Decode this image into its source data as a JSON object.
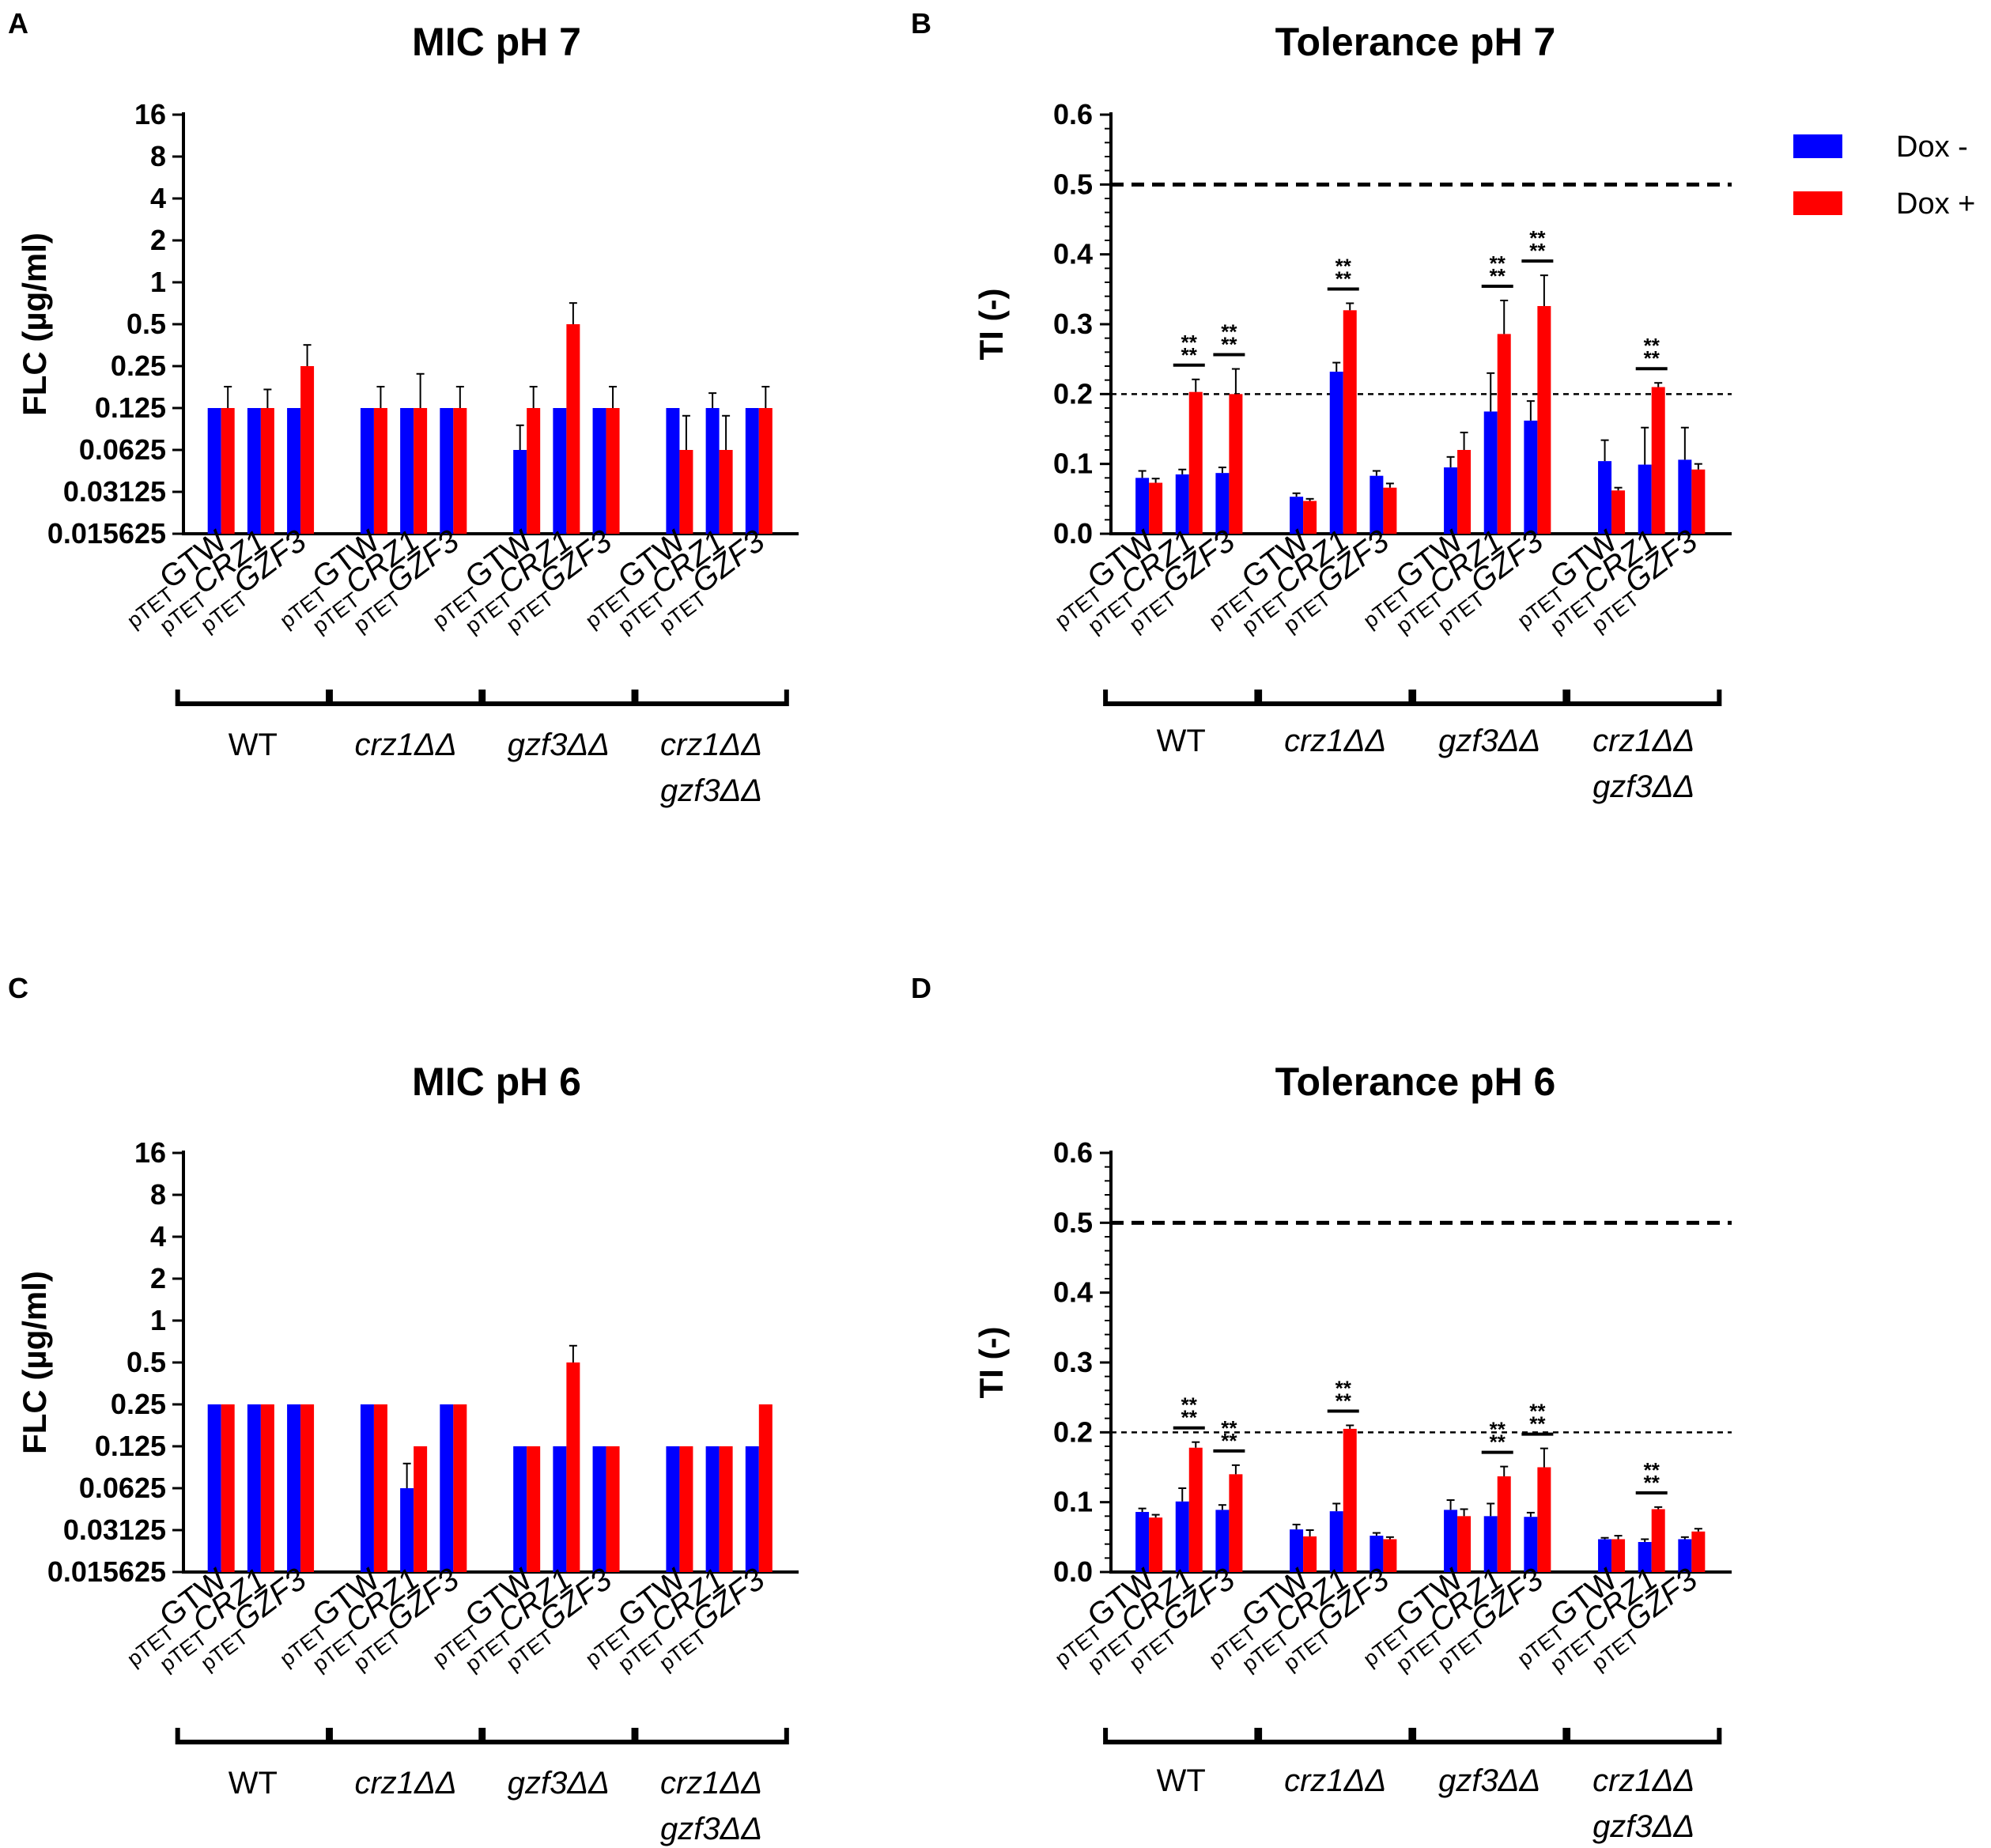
{
  "colors": {
    "dox_minus": "#0000FF",
    "dox_plus": "#FF0000"
  },
  "legend": [
    {
      "label": "Dox -",
      "color": "#0000FF"
    },
    {
      "label": "Dox +",
      "color": "#FF0000"
    }
  ],
  "strain_labels": [
    {
      "prefix": "pTET",
      "gene": "GTW",
      "italic": false
    },
    {
      "prefix": "pTET",
      "gene": "CRZ1",
      "italic": true
    },
    {
      "prefix": "pTET",
      "gene": "GZF3",
      "italic": true
    }
  ],
  "groups": [
    {
      "lines": [
        "WT"
      ],
      "italic": false
    },
    {
      "lines": [
        "crz1ΔΔ"
      ],
      "italic": true
    },
    {
      "lines": [
        "gzf3ΔΔ"
      ],
      "italic": true
    },
    {
      "lines": [
        "crz1ΔΔ",
        "gzf3ΔΔ"
      ],
      "italic": true
    }
  ],
  "significance_label": "**",
  "chart_data": [
    {
      "panel": "A",
      "type": "bar",
      "title": "MIC pH 7",
      "ylabel": "FLC (µg/ml)",
      "yscale": "log2",
      "ylim": [
        0.015625,
        16
      ],
      "yticks": [
        0.015625,
        0.03125,
        0.0625,
        0.125,
        0.25,
        0.5,
        1,
        2,
        4,
        8,
        16
      ],
      "ytick_labels": [
        "0.015625",
        "0.03125",
        "0.0625",
        "0.125",
        "0.25",
        "0.5",
        "1",
        "2",
        "4",
        "8",
        "16"
      ],
      "categories": [
        "WT pTET-GTW",
        "WT pTET-CRZ1",
        "WT pTET-GZF3",
        "crz1ΔΔ pTET-GTW",
        "crz1ΔΔ pTET-CRZ1",
        "crz1ΔΔ pTET-GZF3",
        "gzf3ΔΔ pTET-GTW",
        "gzf3ΔΔ pTET-CRZ1",
        "gzf3ΔΔ pTET-GZF3",
        "crz1ΔΔ gzf3ΔΔ pTET-GTW",
        "crz1ΔΔ gzf3ΔΔ pTET-CRZ1",
        "crz1ΔΔ gzf3ΔΔ pTET-GZF3"
      ],
      "series": [
        {
          "name": "Dox -",
          "values": [
            0.125,
            0.125,
            0.125,
            0.125,
            0.125,
            0.125,
            0.0625,
            0.125,
            0.125,
            0.125,
            0.125,
            0.125
          ],
          "err_top": [
            null,
            null,
            null,
            null,
            null,
            null,
            0.094,
            null,
            null,
            null,
            0.16,
            null
          ]
        },
        {
          "name": "Dox +",
          "values": [
            0.125,
            0.125,
            0.25,
            0.125,
            0.125,
            0.125,
            0.125,
            0.5,
            0.125,
            0.0625,
            0.0625,
            0.125
          ],
          "err_top": [
            0.178,
            0.17,
            0.355,
            0.178,
            0.22,
            0.178,
            0.178,
            0.71,
            0.178,
            0.11,
            0.11,
            0.178
          ]
        }
      ],
      "reference_lines": [],
      "significance": []
    },
    {
      "panel": "B",
      "type": "bar",
      "title": "Tolerance pH 7",
      "ylabel": "TI (-)",
      "yscale": "linear",
      "ylim": [
        0,
        0.6
      ],
      "yticks": [
        0,
        0.1,
        0.2,
        0.3,
        0.4,
        0.5,
        0.6
      ],
      "ytick_labels": [
        "0.0",
        "0.1",
        "0.2",
        "0.3",
        "0.4",
        "0.5",
        "0.6"
      ],
      "categories": [
        "WT pTET-GTW",
        "WT pTET-CRZ1",
        "WT pTET-GZF3",
        "crz1ΔΔ pTET-GTW",
        "crz1ΔΔ pTET-CRZ1",
        "crz1ΔΔ pTET-GZF3",
        "gzf3ΔΔ pTET-GTW",
        "gzf3ΔΔ pTET-CRZ1",
        "gzf3ΔΔ pTET-GZF3",
        "crz1ΔΔ gzf3ΔΔ pTET-GTW",
        "crz1ΔΔ gzf3ΔΔ pTET-CRZ1",
        "crz1ΔΔ gzf3ΔΔ pTET-GZF3"
      ],
      "series": [
        {
          "name": "Dox -",
          "values": [
            0.08,
            0.085,
            0.087,
            0.053,
            0.232,
            0.083,
            0.095,
            0.175,
            0.162,
            0.104,
            0.099,
            0.106
          ],
          "err_top": [
            0.09,
            0.092,
            0.095,
            0.058,
            0.245,
            0.09,
            0.11,
            0.23,
            0.19,
            0.134,
            0.152,
            0.152
          ]
        },
        {
          "name": "Dox +",
          "values": [
            0.073,
            0.203,
            0.2,
            0.047,
            0.32,
            0.066,
            0.12,
            0.286,
            0.326,
            0.062,
            0.21,
            0.092
          ],
          "err_top": [
            0.079,
            0.221,
            0.236,
            0.05,
            0.33,
            0.072,
            0.145,
            0.334,
            0.37,
            0.066,
            0.216,
            0.1
          ]
        }
      ],
      "reference_lines": [
        {
          "value": 0.5,
          "style": "bold-dashed"
        },
        {
          "value": 0.2,
          "style": "dashed"
        }
      ],
      "significance": [
        {
          "category_index": 1,
          "label": "****"
        },
        {
          "category_index": 2,
          "label": "****"
        },
        {
          "category_index": 4,
          "label": "****"
        },
        {
          "category_index": 7,
          "label": "****"
        },
        {
          "category_index": 8,
          "label": "****"
        },
        {
          "category_index": 10,
          "label": "****"
        }
      ]
    },
    {
      "panel": "C",
      "type": "bar",
      "title": "MIC pH 6",
      "ylabel": "FLC (µg/ml)",
      "yscale": "log2",
      "ylim": [
        0.015625,
        16
      ],
      "yticks": [
        0.015625,
        0.03125,
        0.0625,
        0.125,
        0.25,
        0.5,
        1,
        2,
        4,
        8,
        16
      ],
      "ytick_labels": [
        "0.015625",
        "0.03125",
        "0.0625",
        "0.125",
        "0.25",
        "0.5",
        "1",
        "2",
        "4",
        "8",
        "16"
      ],
      "categories": [
        "WT pTET-GTW",
        "WT pTET-CRZ1",
        "WT pTET-GZF3",
        "crz1ΔΔ pTET-GTW",
        "crz1ΔΔ pTET-CRZ1",
        "crz1ΔΔ pTET-GZF3",
        "gzf3ΔΔ pTET-GTW",
        "gzf3ΔΔ pTET-CRZ1",
        "gzf3ΔΔ pTET-GZF3",
        "crz1ΔΔ gzf3ΔΔ pTET-GTW",
        "crz1ΔΔ gzf3ΔΔ pTET-CRZ1",
        "crz1ΔΔ gzf3ΔΔ pTET-GZF3"
      ],
      "series": [
        {
          "name": "Dox -",
          "values": [
            0.25,
            0.25,
            0.25,
            0.25,
            0.0625,
            0.25,
            0.125,
            0.125,
            0.125,
            0.125,
            0.125,
            0.125
          ],
          "err_top": [
            null,
            null,
            null,
            null,
            0.094,
            null,
            null,
            null,
            null,
            null,
            null,
            null
          ]
        },
        {
          "name": "Dox +",
          "values": [
            0.25,
            0.25,
            0.25,
            0.25,
            0.125,
            0.25,
            0.125,
            0.5,
            0.125,
            0.125,
            0.125,
            0.25
          ],
          "err_top": [
            null,
            null,
            null,
            null,
            null,
            null,
            null,
            0.66,
            null,
            null,
            null,
            null
          ]
        }
      ],
      "reference_lines": [],
      "significance": []
    },
    {
      "panel": "D",
      "type": "bar",
      "title": "Tolerance pH 6",
      "ylabel": "TI (-)",
      "yscale": "linear",
      "ylim": [
        0,
        0.6
      ],
      "yticks": [
        0,
        0.1,
        0.2,
        0.3,
        0.4,
        0.5,
        0.6
      ],
      "ytick_labels": [
        "0.0",
        "0.1",
        "0.2",
        "0.3",
        "0.4",
        "0.5",
        "0.6"
      ],
      "categories": [
        "WT pTET-GTW",
        "WT pTET-CRZ1",
        "WT pTET-GZF3",
        "crz1ΔΔ pTET-GTW",
        "crz1ΔΔ pTET-CRZ1",
        "crz1ΔΔ pTET-GZF3",
        "gzf3ΔΔ pTET-GTW",
        "gzf3ΔΔ pTET-CRZ1",
        "gzf3ΔΔ pTET-GZF3",
        "crz1ΔΔ gzf3ΔΔ pTET-GTW",
        "crz1ΔΔ gzf3ΔΔ pTET-CRZ1",
        "crz1ΔΔ gzf3ΔΔ pTET-GZF3"
      ],
      "series": [
        {
          "name": "Dox -",
          "values": [
            0.086,
            0.101,
            0.089,
            0.061,
            0.087,
            0.052,
            0.089,
            0.08,
            0.079,
            0.047,
            0.043,
            0.047
          ],
          "err_top": [
            0.091,
            0.12,
            0.096,
            0.068,
            0.098,
            0.056,
            0.103,
            0.098,
            0.085,
            0.049,
            0.047,
            0.05
          ]
        },
        {
          "name": "Dox +",
          "values": [
            0.078,
            0.178,
            0.14,
            0.051,
            0.205,
            0.047,
            0.08,
            0.137,
            0.15,
            0.047,
            0.09,
            0.058
          ],
          "err_top": [
            0.082,
            0.186,
            0.153,
            0.06,
            0.21,
            0.05,
            0.09,
            0.151,
            0.177,
            0.052,
            0.093,
            0.062
          ]
        }
      ],
      "reference_lines": [
        {
          "value": 0.5,
          "style": "bold-dashed"
        },
        {
          "value": 0.2,
          "style": "dashed"
        }
      ],
      "significance": [
        {
          "category_index": 1,
          "label": "****"
        },
        {
          "category_index": 2,
          "label": "****"
        },
        {
          "category_index": 4,
          "label": "****"
        },
        {
          "category_index": 7,
          "label": "****"
        },
        {
          "category_index": 8,
          "label": "****"
        },
        {
          "category_index": 10,
          "label": "****"
        }
      ]
    }
  ]
}
